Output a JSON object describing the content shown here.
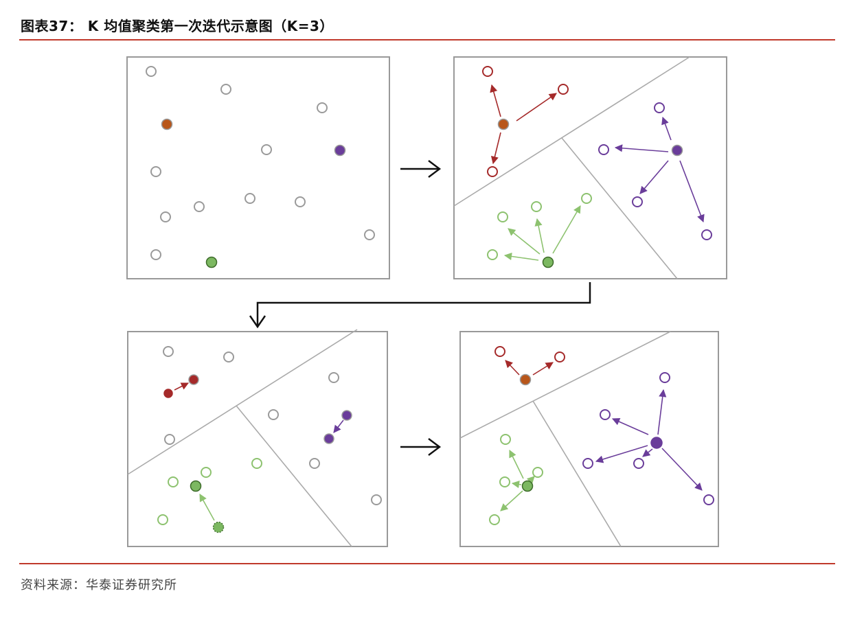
{
  "header": {
    "title": "图表37：  K 均值聚类第一次迭代示意图（K=3）"
  },
  "footer": {
    "source": "资料来源：华泰证券研究所"
  },
  "colors": {
    "red": "#a52a2a",
    "orange": "#b8561a",
    "purple": "#6a3d9a",
    "green": "#8dc26f",
    "green_fill": "#7cb861",
    "gray_point": "#9a9a9a",
    "boundary": "#aaaaaa",
    "panel_border": "#999999",
    "accent_rule": "#c0392b"
  }
}
